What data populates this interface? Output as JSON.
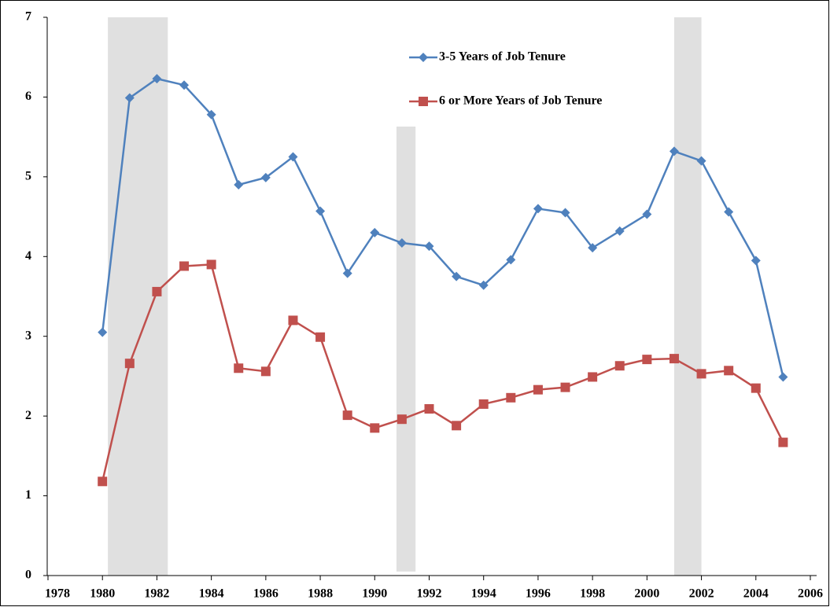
{
  "chart_data": {
    "type": "line",
    "x": [
      1980,
      1981,
      1982,
      1983,
      1984,
      1985,
      1986,
      1987,
      1988,
      1989,
      1990,
      1991,
      1992,
      1993,
      1994,
      1995,
      1996,
      1997,
      1998,
      1999,
      2000,
      2001,
      2002,
      2003,
      2004,
      2005
    ],
    "series": [
      {
        "name": "3-5 Years of Job Tenure",
        "color": "#4f81bd",
        "marker": "diamond",
        "values": [
          3.05,
          5.99,
          6.23,
          6.15,
          5.78,
          4.9,
          4.99,
          5.25,
          4.57,
          3.79,
          4.3,
          4.17,
          4.13,
          3.75,
          3.64,
          3.96,
          4.6,
          4.55,
          4.11,
          4.32,
          4.53,
          5.32,
          5.2,
          4.56,
          3.95,
          2.49
        ]
      },
      {
        "name": "6 or More Years of Job Tenure",
        "color": "#c0504d",
        "marker": "square",
        "values": [
          1.18,
          2.66,
          3.56,
          3.88,
          3.9,
          2.6,
          2.56,
          3.2,
          2.99,
          2.01,
          1.85,
          1.96,
          2.09,
          1.88,
          2.15,
          2.23,
          2.33,
          2.36,
          2.49,
          2.63,
          2.71,
          2.72,
          2.53,
          2.57,
          2.35,
          1.67
        ]
      }
    ],
    "shaded_regions": [
      {
        "start": 1980.2,
        "end": 1982.4,
        "ymin": 0,
        "ymax": 7
      },
      {
        "start": 1990.8,
        "end": 1991.5,
        "ymin": 0.05,
        "ymax": 5.63
      },
      {
        "start": 2001,
        "end": 2002,
        "ymin": 0,
        "ymax": 7
      }
    ],
    "shade_color": "#e0e0e0",
    "xlim": [
      1978,
      2006
    ],
    "xticks": [
      1978,
      1980,
      1982,
      1984,
      1986,
      1988,
      1990,
      1992,
      1994,
      1996,
      1998,
      2000,
      2002,
      2004,
      2006
    ],
    "ylim": [
      0,
      7
    ],
    "yticks": [
      0,
      1,
      2,
      3,
      4,
      5,
      6,
      7
    ],
    "grid": false,
    "legend": "top"
  }
}
